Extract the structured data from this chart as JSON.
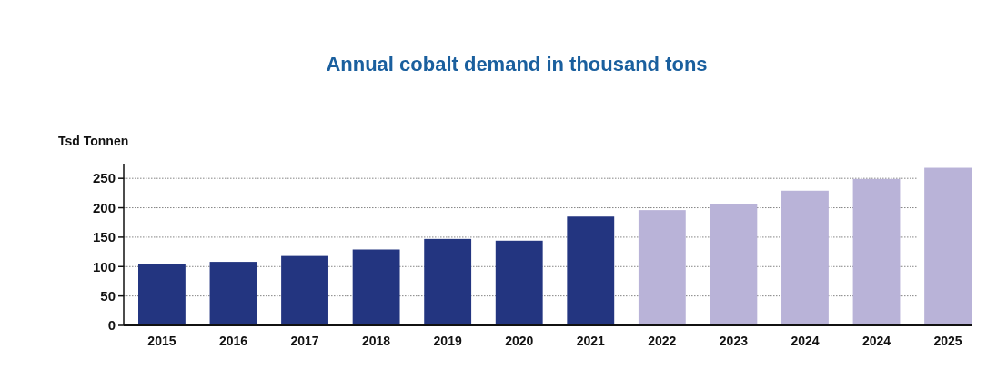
{
  "chart_data": {
    "type": "bar",
    "title": "Annual cobalt demand in thousand tons",
    "ylabel": "Tsd Tonnen",
    "categories": [
      "2015",
      "2016",
      "2017",
      "2018",
      "2019",
      "2020",
      "2021",
      "2022",
      "2023",
      "2024",
      "2024",
      "2025"
    ],
    "values": [
      105,
      108,
      118,
      129,
      147,
      144,
      185,
      196,
      207,
      229,
      249,
      268
    ],
    "colors": [
      "#233580",
      "#233580",
      "#233580",
      "#233580",
      "#233580",
      "#233580",
      "#233580",
      "#b9b3d8",
      "#b9b3d8",
      "#b9b3d8",
      "#b9b3d8",
      "#b9b3d8"
    ],
    "ylim": [
      0,
      275
    ],
    "yticks": [
      0,
      50,
      100,
      150,
      200,
      250
    ],
    "grid": "y"
  }
}
